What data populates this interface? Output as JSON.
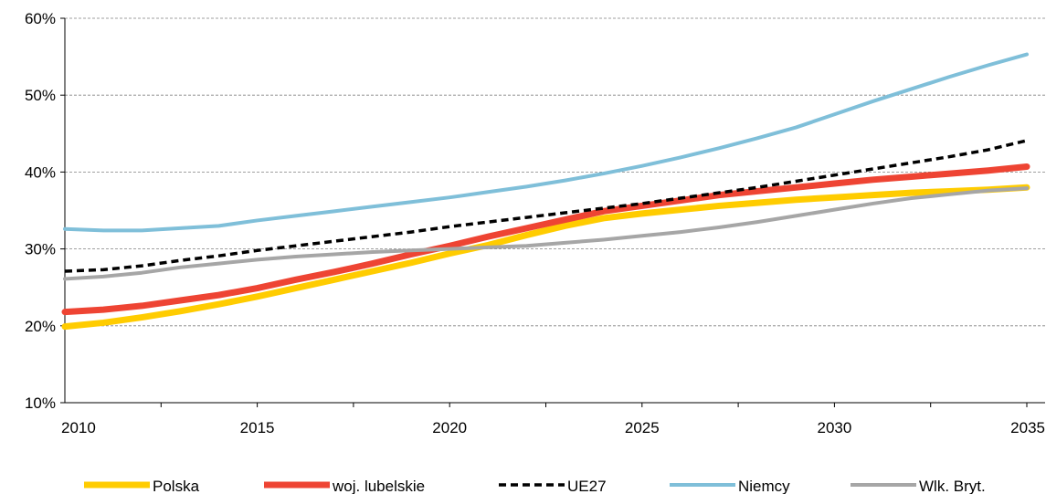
{
  "chart_data": {
    "type": "line",
    "title": "",
    "xlabel": "",
    "ylabel": "",
    "xlim": [
      2010,
      2035
    ],
    "ylim": [
      10,
      60
    ],
    "x_ticks": [
      "2010",
      "2015",
      "2020",
      "2025",
      "2030",
      "2035"
    ],
    "y_ticks": [
      "10%",
      "20%",
      "30%",
      "40%",
      "50%",
      "60%"
    ],
    "y_tick_values": [
      10,
      20,
      30,
      40,
      50,
      60
    ],
    "grid": "horizontal dashed",
    "legend_position": "bottom",
    "x": [
      2010,
      2011,
      2012,
      2013,
      2014,
      2015,
      2016,
      2017,
      2018,
      2019,
      2020,
      2021,
      2022,
      2023,
      2024,
      2025,
      2026,
      2027,
      2028,
      2029,
      2030,
      2031,
      2032,
      2033,
      2034,
      2035
    ],
    "series": [
      {
        "name": "Polska",
        "color": "#FFCC00",
        "style": "solid-thick",
        "values": [
          19.9,
          20.4,
          21.1,
          21.9,
          22.8,
          23.8,
          24.9,
          26.0,
          27.1,
          28.2,
          29.4,
          30.5,
          31.8,
          33.0,
          34.0,
          34.6,
          35.1,
          35.6,
          36.0,
          36.4,
          36.7,
          37.0,
          37.3,
          37.5,
          37.7,
          38.0
        ]
      },
      {
        "name": "woj. lubelskie",
        "color": "#EE4433",
        "style": "solid-thick",
        "values": [
          21.8,
          22.1,
          22.6,
          23.3,
          24.0,
          24.9,
          26.0,
          27.0,
          28.1,
          29.3,
          30.4,
          31.6,
          32.7,
          33.8,
          34.9,
          35.6,
          36.3,
          37.0,
          37.5,
          38.0,
          38.5,
          39.0,
          39.4,
          39.8,
          40.2,
          40.7
        ]
      },
      {
        "name": "UE27",
        "color": "#000000",
        "style": "dashed",
        "values": [
          27.1,
          27.3,
          27.8,
          28.5,
          29.1,
          29.8,
          30.4,
          31.0,
          31.6,
          32.2,
          32.9,
          33.5,
          34.1,
          34.7,
          35.3,
          35.9,
          36.6,
          37.3,
          38.0,
          38.8,
          39.6,
          40.4,
          41.2,
          42.0,
          42.9,
          44.1
        ]
      },
      {
        "name": "Niemcy",
        "color": "#7FBFD9",
        "style": "solid",
        "values": [
          32.6,
          32.4,
          32.4,
          32.7,
          33.0,
          33.7,
          34.3,
          34.9,
          35.5,
          36.1,
          36.7,
          37.4,
          38.1,
          38.9,
          39.8,
          40.8,
          41.9,
          43.1,
          44.4,
          45.8,
          47.5,
          49.2,
          50.8,
          52.4,
          53.9,
          55.3
        ]
      },
      {
        "name": "Wlk. Bryt.",
        "color": "#A6A6A6",
        "style": "solid",
        "values": [
          26.1,
          26.4,
          26.9,
          27.6,
          28.1,
          28.6,
          29.0,
          29.3,
          29.6,
          29.8,
          30.0,
          30.2,
          30.4,
          30.8,
          31.2,
          31.7,
          32.2,
          32.8,
          33.5,
          34.3,
          35.1,
          35.9,
          36.6,
          37.1,
          37.6,
          37.9
        ]
      }
    ]
  }
}
